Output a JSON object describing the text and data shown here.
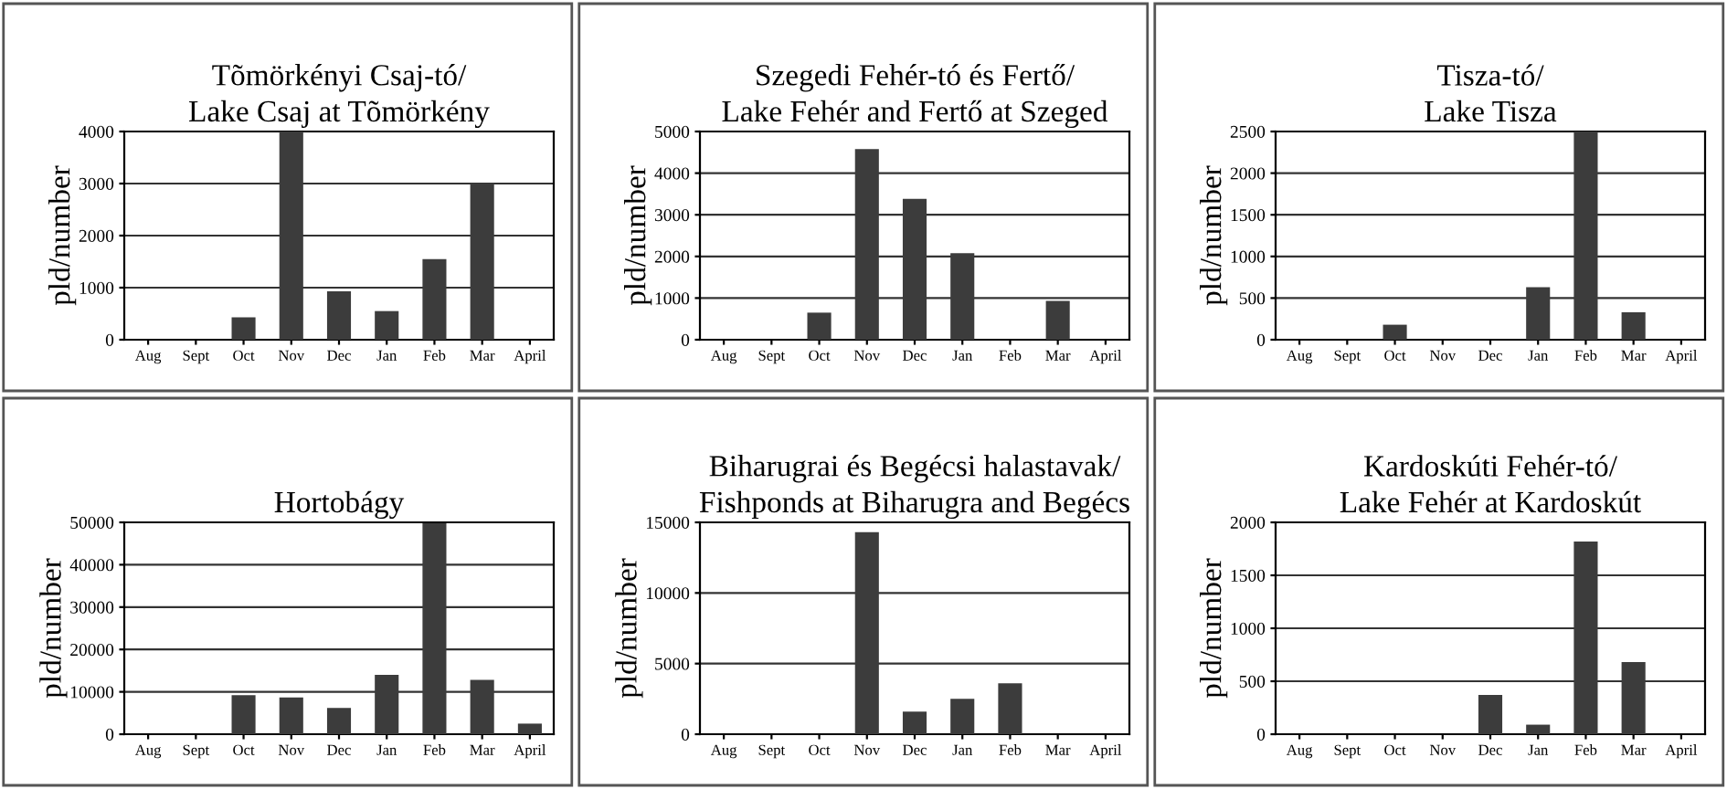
{
  "chart_data": [
    {
      "type": "bar",
      "title": "Tõmörkényi Csaj-tó/\nLake Csaj at Tõmörkény",
      "ylabel": "pld/number",
      "categories": [
        "Aug",
        "Sept",
        "Oct",
        "Nov",
        "Dec",
        "Jan",
        "Feb",
        "Mar",
        "April"
      ],
      "values": [
        0,
        0,
        430,
        4000,
        930,
        550,
        1550,
        3000,
        0
      ],
      "color": "#3c3c3c",
      "ylim": [
        0,
        4000
      ],
      "yticks": [
        0,
        1000,
        2000,
        3000,
        4000
      ],
      "grid": "y"
    },
    {
      "type": "bar",
      "title": "Szegedi Fehér-tó és Fertő/\nLake Fehér and Fertő at Szeged",
      "ylabel": "pld/number",
      "categories": [
        "Aug",
        "Sept",
        "Oct",
        "Nov",
        "Dec",
        "Jan",
        "Feb",
        "Mar",
        "April"
      ],
      "values": [
        0,
        0,
        650,
        4580,
        3380,
        2080,
        0,
        930,
        0
      ],
      "color": "#3c3c3c",
      "ylim": [
        0,
        5000
      ],
      "yticks": [
        0,
        1000,
        2000,
        3000,
        4000,
        5000
      ],
      "grid": "y"
    },
    {
      "type": "bar",
      "title": "Tisza-tó/\nLake Tisza",
      "ylabel": "pld/number",
      "categories": [
        "Aug",
        "Sept",
        "Oct",
        "Nov",
        "Dec",
        "Jan",
        "Feb",
        "Mar",
        "April"
      ],
      "values": [
        0,
        0,
        180,
        0,
        0,
        630,
        2500,
        330,
        0
      ],
      "color": "#3c3c3c",
      "ylim": [
        0,
        2500
      ],
      "yticks": [
        0,
        500,
        1000,
        1500,
        2000,
        2500
      ],
      "grid": "y"
    },
    {
      "type": "bar",
      "title": "Hortobágy",
      "ylabel": "pld/number",
      "categories": [
        "Aug",
        "Sept",
        "Oct",
        "Nov",
        "Dec",
        "Jan",
        "Feb",
        "Mar",
        "April"
      ],
      "values": [
        0,
        0,
        9200,
        8700,
        6200,
        14000,
        49800,
        12800,
        2500
      ],
      "color": "#3c3c3c",
      "ylim": [
        0,
        50000
      ],
      "yticks": [
        0,
        10000,
        20000,
        30000,
        40000,
        50000
      ],
      "grid": "y"
    },
    {
      "type": "bar",
      "title": "Biharugrai és Begécsi halastavak/\nFishponds at Biharugra and Begécs",
      "ylabel": "pld/number",
      "categories": [
        "Aug",
        "Sept",
        "Oct",
        "Nov",
        "Dec",
        "Jan",
        "Feb",
        "Mar",
        "April"
      ],
      "values": [
        0,
        0,
        0,
        14300,
        1600,
        2500,
        3600,
        0,
        0
      ],
      "color": "#3c3c3c",
      "ylim": [
        0,
        15000
      ],
      "yticks": [
        0,
        5000,
        10000,
        15000
      ],
      "grid": "y"
    },
    {
      "type": "bar",
      "title": "Kardoskúti Fehér-tó/\nLake Fehér at Kardoskút",
      "ylabel": "pld/number",
      "categories": [
        "Aug",
        "Sept",
        "Oct",
        "Nov",
        "Dec",
        "Jan",
        "Feb",
        "Mar",
        "April"
      ],
      "values": [
        0,
        0,
        0,
        0,
        370,
        90,
        1820,
        680,
        0
      ],
      "color": "#3c3c3c",
      "ylim": [
        0,
        2000
      ],
      "yticks": [
        0,
        500,
        1000,
        1500,
        2000
      ],
      "grid": "y"
    }
  ]
}
